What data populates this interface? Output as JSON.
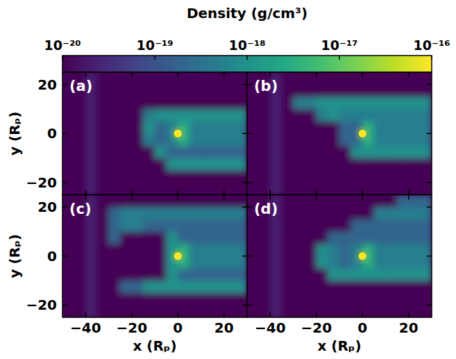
{
  "colorbar": {
    "label": "Density (g/cm³)",
    "log": true,
    "range": [
      1e-20,
      1e-16
    ],
    "ticks": [
      {
        "value": 1e-20,
        "label": "10⁻²⁰"
      },
      {
        "value": 1e-19,
        "label": "10⁻¹⁹"
      },
      {
        "value": 1e-18,
        "label": "10⁻¹⁸"
      },
      {
        "value": 1e-17,
        "label": "10⁻¹⁷"
      },
      {
        "value": 1e-16,
        "label": "10⁻¹⁶"
      }
    ]
  },
  "chart_data": [
    {
      "type": "heatmap",
      "title": "(a)",
      "ylabel": "y (Rₚ)",
      "tick_labels": "y",
      "xlim": [
        -50,
        30
      ],
      "ylim": [
        -25,
        25
      ],
      "xticks": [
        {
          "value": -40,
          "label": "−40"
        },
        {
          "value": -20,
          "label": "−20"
        },
        0,
        20
      ],
      "yticks": [
        {
          "value": -20,
          "label": "−20"
        },
        0,
        20
      ],
      "x_bins": [
        -50,
        -45,
        -40,
        -35,
        -30,
        -25,
        -20,
        -15,
        -10,
        -5,
        0,
        5,
        10,
        15,
        20,
        25,
        30
      ],
      "y_bins": [
        -25,
        -20,
        -15,
        -10,
        -5,
        0,
        5,
        10,
        15,
        20,
        25
      ],
      "values": [
        [
          1e-20,
          1e-20,
          2e-20,
          1e-20,
          1e-20,
          1e-20,
          1e-20,
          1e-20,
          1e-20,
          1e-20,
          1e-20,
          1e-20,
          1e-20,
          1e-20,
          1e-20,
          1e-20
        ],
        [
          1e-20,
          1e-20,
          2e-20,
          1e-20,
          1e-20,
          1e-20,
          1e-20,
          1e-20,
          1e-20,
          1e-20,
          1e-20,
          1e-20,
          1e-20,
          1e-20,
          1e-20,
          1e-20
        ],
        [
          1e-20,
          1e-20,
          2e-20,
          1e-20,
          1e-20,
          1e-20,
          1e-20,
          1e-20,
          1e-20,
          1e-18,
          1e-18,
          1e-18,
          1e-18,
          1e-18,
          1e-18,
          1e-18
        ],
        [
          1e-20,
          1e-20,
          2e-20,
          1e-20,
          1e-20,
          1e-20,
          1e-20,
          1e-20,
          1e-18,
          2e-19,
          2e-19,
          2e-19,
          2e-19,
          2e-19,
          2e-19,
          2e-19
        ],
        [
          1e-20,
          1e-20,
          2e-20,
          1e-20,
          1e-20,
          1e-20,
          1e-20,
          5e-19,
          2e-19,
          5e-19,
          3e-18,
          5e-19,
          5e-19,
          5e-19,
          5e-19,
          5e-19
        ],
        [
          1e-20,
          1e-20,
          2e-20,
          1e-20,
          1e-20,
          1e-20,
          1e-20,
          1e-18,
          2e-19,
          5e-19,
          3e-18,
          5e-19,
          5e-19,
          5e-19,
          5e-19,
          5e-19
        ],
        [
          1e-20,
          1e-20,
          2e-20,
          1e-20,
          1e-20,
          1e-20,
          1e-20,
          5e-19,
          1e-18,
          1e-18,
          1e-18,
          1e-18,
          1e-18,
          1e-18,
          1e-18,
          1e-18
        ],
        [
          1e-20,
          1e-20,
          2e-20,
          1e-20,
          1e-20,
          1e-20,
          1e-20,
          1e-20,
          1e-20,
          1e-20,
          1e-20,
          1e-20,
          1e-20,
          1e-20,
          1e-20,
          1e-20
        ],
        [
          1e-20,
          1e-20,
          2e-20,
          1e-20,
          1e-20,
          1e-20,
          1e-20,
          1e-20,
          1e-20,
          1e-20,
          1e-20,
          1e-20,
          1e-20,
          1e-20,
          1e-20,
          1e-20
        ],
        [
          1e-20,
          1e-20,
          2e-20,
          1e-20,
          1e-20,
          1e-20,
          1e-20,
          1e-20,
          1e-20,
          1e-20,
          1e-20,
          1e-20,
          1e-20,
          1e-20,
          1e-20,
          1e-20
        ]
      ],
      "planet": {
        "x": 0,
        "y": 0,
        "density": 1e-16
      }
    },
    {
      "type": "heatmap",
      "title": "(b)",
      "tick_labels": false,
      "xlim": [
        -50,
        30
      ],
      "ylim": [
        -25,
        25
      ],
      "xticks": [
        -40,
        -20,
        0,
        20
      ],
      "yticks": [
        -20,
        0,
        20
      ],
      "x_bins": [
        -50,
        -45,
        -40,
        -35,
        -30,
        -25,
        -20,
        -15,
        -10,
        -5,
        0,
        5,
        10,
        15,
        20,
        25,
        30
      ],
      "y_bins": [
        -25,
        -20,
        -15,
        -10,
        -5,
        0,
        5,
        10,
        15,
        20,
        25
      ],
      "values": [
        [
          1e-20,
          1e-20,
          2e-20,
          1e-20,
          1e-20,
          1e-20,
          1e-20,
          1e-20,
          1e-20,
          1e-20,
          1e-20,
          1e-20,
          1e-20,
          1e-20,
          1e-20,
          1e-20
        ],
        [
          1e-20,
          1e-20,
          2e-20,
          1e-20,
          1e-20,
          1e-20,
          1e-20,
          1e-20,
          1e-20,
          1e-20,
          1e-20,
          1e-20,
          1e-20,
          1e-20,
          1e-20,
          1e-20
        ],
        [
          1e-20,
          1e-20,
          2e-20,
          1e-20,
          1e-20,
          1e-20,
          1e-20,
          1e-20,
          1e-20,
          1e-20,
          1e-20,
          1e-20,
          1e-20,
          1e-20,
          1e-20,
          1e-20
        ],
        [
          1e-20,
          1e-20,
          2e-20,
          1e-20,
          1e-20,
          1e-20,
          1e-20,
          1e-20,
          1e-20,
          1e-18,
          1e-18,
          1e-18,
          1e-18,
          1e-18,
          1e-18,
          1e-18
        ],
        [
          1e-20,
          1e-20,
          2e-20,
          1e-20,
          1e-20,
          1e-20,
          1e-20,
          1e-20,
          2e-19,
          2e-19,
          3e-18,
          5e-19,
          5e-19,
          5e-19,
          5e-19,
          5e-19
        ],
        [
          1e-20,
          1e-20,
          2e-20,
          1e-20,
          1e-20,
          1e-20,
          1e-20,
          1e-20,
          2e-19,
          2e-19,
          3e-18,
          5e-19,
          5e-19,
          5e-19,
          5e-19,
          5e-19
        ],
        [
          1e-20,
          1e-20,
          2e-20,
          1e-20,
          1e-20,
          1e-20,
          5e-19,
          1e-18,
          5e-19,
          5e-19,
          5e-19,
          5e-19,
          5e-19,
          5e-19,
          5e-19,
          5e-19
        ],
        [
          1e-20,
          1e-20,
          2e-20,
          1e-20,
          5e-19,
          5e-19,
          1e-18,
          1e-18,
          1e-18,
          1e-18,
          1e-18,
          1e-18,
          1e-18,
          1e-18,
          1e-18,
          1e-18
        ],
        [
          1e-20,
          1e-20,
          2e-20,
          1e-20,
          1e-20,
          1e-20,
          1e-20,
          1e-20,
          1e-20,
          1e-20,
          1e-20,
          1e-20,
          1e-20,
          1e-20,
          1e-20,
          1e-20
        ],
        [
          1e-20,
          1e-20,
          2e-20,
          1e-20,
          1e-20,
          1e-20,
          1e-20,
          1e-20,
          1e-20,
          1e-20,
          1e-20,
          1e-20,
          1e-20,
          1e-20,
          1e-20,
          1e-20
        ]
      ],
      "planet": {
        "x": 0,
        "y": 0,
        "density": 1e-16
      }
    },
    {
      "type": "heatmap",
      "title": "(c)",
      "xlabel": "x (Rₚ)",
      "ylabel": "y (Rₚ)",
      "tick_labels": true,
      "xlim": [
        -50,
        30
      ],
      "ylim": [
        -25,
        25
      ],
      "xticks": [
        {
          "value": -40,
          "label": "−40"
        },
        {
          "value": -20,
          "label": "−20"
        },
        0,
        20
      ],
      "yticks": [
        {
          "value": -20,
          "label": "−20"
        },
        0,
        20
      ],
      "x_bins": [
        -50,
        -45,
        -40,
        -35,
        -30,
        -25,
        -20,
        -15,
        -10,
        -5,
        0,
        5,
        10,
        15,
        20,
        25,
        30
      ],
      "y_bins": [
        -25,
        -20,
        -15,
        -10,
        -5,
        0,
        5,
        10,
        15,
        20,
        25
      ],
      "values": [
        [
          1e-20,
          1e-20,
          2e-20,
          1e-20,
          1e-20,
          1e-20,
          1e-20,
          1e-20,
          1e-20,
          1e-20,
          1e-20,
          1e-20,
          1e-20,
          1e-20,
          1e-20,
          1e-20
        ],
        [
          1e-20,
          1e-20,
          2e-20,
          1e-20,
          1e-20,
          1e-20,
          1e-20,
          1e-20,
          1e-20,
          1e-20,
          1e-20,
          1e-20,
          1e-20,
          1e-20,
          1e-20,
          1e-20
        ],
        [
          1e-20,
          1e-20,
          2e-20,
          1e-20,
          1e-20,
          2e-19,
          2e-19,
          1e-18,
          1e-18,
          1e-18,
          1e-18,
          1e-18,
          1e-18,
          1e-18,
          1e-18,
          1e-18
        ],
        [
          1e-20,
          1e-20,
          2e-20,
          1e-20,
          1e-20,
          1e-20,
          1e-20,
          1e-20,
          1e-20,
          1e-18,
          2e-19,
          2e-19,
          2e-19,
          2e-19,
          2e-19,
          2e-19
        ],
        [
          1e-20,
          1e-20,
          2e-20,
          1e-20,
          1e-20,
          1e-20,
          1e-20,
          1e-20,
          1e-20,
          1e-18,
          3e-18,
          5e-19,
          5e-19,
          5e-19,
          5e-19,
          5e-19
        ],
        [
          1e-20,
          1e-20,
          2e-20,
          1e-20,
          1e-20,
          1e-20,
          1e-20,
          1e-20,
          1e-20,
          1e-18,
          3e-18,
          5e-19,
          5e-19,
          5e-19,
          5e-19,
          5e-19
        ],
        [
          1e-20,
          1e-20,
          2e-20,
          1e-20,
          2e-19,
          1e-20,
          1e-20,
          1e-20,
          1e-20,
          1e-18,
          2e-19,
          2e-19,
          2e-19,
          2e-19,
          2e-19,
          2e-19
        ],
        [
          1e-20,
          1e-20,
          2e-20,
          1e-20,
          2e-19,
          5e-19,
          5e-19,
          2e-19,
          2e-19,
          2e-19,
          2e-19,
          2e-19,
          2e-19,
          2e-19,
          2e-19,
          2e-19
        ],
        [
          1e-20,
          1e-20,
          2e-20,
          1e-20,
          2e-19,
          5e-19,
          5e-19,
          5e-19,
          5e-19,
          5e-19,
          5e-19,
          5e-19,
          5e-19,
          5e-19,
          5e-19,
          5e-19
        ],
        [
          1e-20,
          1e-20,
          2e-20,
          1e-20,
          1e-20,
          1e-20,
          1e-20,
          1e-20,
          1e-20,
          1e-20,
          1e-20,
          1e-20,
          1e-20,
          1e-20,
          1e-20,
          1e-20
        ]
      ],
      "planet": {
        "x": 0,
        "y": 0,
        "density": 1e-16
      }
    },
    {
      "type": "heatmap",
      "title": "(d)",
      "xlabel": "x (Rₚ)",
      "tick_labels": "x",
      "xlim": [
        -50,
        30
      ],
      "ylim": [
        -25,
        25
      ],
      "xticks": [
        {
          "value": -40,
          "label": "−40"
        },
        {
          "value": -20,
          "label": "−20"
        },
        0,
        20
      ],
      "yticks": [
        -20,
        0,
        20
      ],
      "x_bins": [
        -50,
        -45,
        -40,
        -35,
        -30,
        -25,
        -20,
        -15,
        -10,
        -5,
        0,
        5,
        10,
        15,
        20,
        25,
        30
      ],
      "y_bins": [
        -25,
        -20,
        -15,
        -10,
        -5,
        0,
        5,
        10,
        15,
        20,
        25
      ],
      "values": [
        [
          1e-20,
          1e-20,
          2e-20,
          1e-20,
          1e-20,
          1e-20,
          1e-20,
          1e-20,
          1e-20,
          1e-20,
          1e-20,
          1e-20,
          1e-20,
          1e-20,
          1e-20,
          1e-20
        ],
        [
          1e-20,
          1e-20,
          2e-20,
          1e-20,
          1e-20,
          1e-20,
          1e-20,
          1e-20,
          1e-20,
          1e-20,
          1e-20,
          1e-20,
          1e-20,
          1e-20,
          1e-20,
          1e-20
        ],
        [
          1e-20,
          1e-20,
          2e-20,
          1e-20,
          1e-20,
          1e-20,
          1e-20,
          1e-20,
          1e-20,
          1e-20,
          1e-20,
          1e-20,
          1e-20,
          1e-20,
          1e-20,
          1e-20
        ],
        [
          1e-20,
          1e-20,
          2e-20,
          1e-20,
          1e-20,
          1e-20,
          1e-20,
          1e-18,
          1e-18,
          1e-18,
          1e-18,
          1e-18,
          1e-18,
          1e-18,
          1e-18,
          1e-18
        ],
        [
          1e-20,
          1e-20,
          2e-20,
          1e-20,
          1e-20,
          1e-20,
          1e-18,
          5e-19,
          2e-19,
          5e-19,
          3e-18,
          5e-19,
          5e-19,
          5e-19,
          5e-19,
          5e-19
        ],
        [
          1e-20,
          1e-20,
          2e-20,
          1e-20,
          1e-20,
          1e-20,
          1e-18,
          5e-19,
          2e-19,
          5e-19,
          3e-18,
          5e-19,
          5e-19,
          5e-19,
          5e-19,
          5e-19
        ],
        [
          1e-20,
          1e-20,
          2e-20,
          1e-20,
          1e-20,
          1e-20,
          1e-20,
          2e-19,
          2e-19,
          2e-19,
          2e-19,
          2e-19,
          2e-19,
          2e-19,
          2e-19,
          2e-19
        ],
        [
          1e-20,
          1e-20,
          2e-20,
          1e-20,
          1e-20,
          1e-20,
          1e-20,
          1e-20,
          1e-20,
          2e-19,
          2e-19,
          2e-19,
          2e-19,
          2e-19,
          2e-19,
          2e-19
        ],
        [
          1e-20,
          1e-20,
          2e-20,
          1e-20,
          1e-20,
          1e-20,
          1e-20,
          1e-20,
          1e-20,
          1e-20,
          1e-20,
          5e-19,
          5e-19,
          5e-19,
          5e-19,
          5e-19
        ],
        [
          1e-20,
          1e-20,
          2e-20,
          1e-20,
          1e-20,
          1e-20,
          1e-20,
          1e-20,
          1e-20,
          1e-20,
          1e-20,
          1e-20,
          1e-20,
          2e-19,
          2e-19,
          2e-19
        ]
      ],
      "planet": {
        "x": 0,
        "y": 0,
        "density": 1e-16
      }
    }
  ]
}
